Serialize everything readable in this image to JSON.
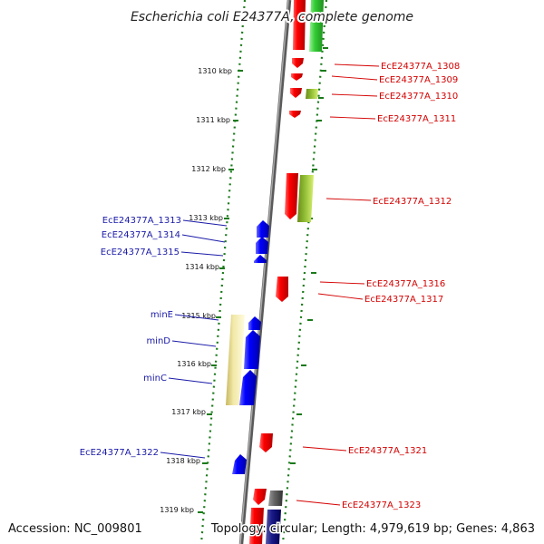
{
  "title": "Escherichia coli E24377A, complete genome",
  "footer": {
    "accession": "Accession: NC_009801",
    "topology": "Topology: circular; Length: 4,979,619 bp; Genes: 4,863"
  },
  "ticks": [
    "1310 kbp",
    "1311 kbp",
    "1312 kbp",
    "1313 kbp",
    "1314 kbp",
    "1315 kbp",
    "1316 kbp",
    "1317 kbp",
    "1318 kbp",
    "1319 kbp"
  ],
  "labels_right": [
    "EcE24377A_1308",
    "EcE24377A_1309",
    "EcE24377A_1310",
    "EcE24377A_1311",
    "EcE24377A_1312",
    "EcE24377A_1316",
    "EcE24377A_1317",
    "EcE24377A_1321",
    "EcE24377A_1323"
  ],
  "labels_left": [
    "EcE24377A_1313",
    "EcE24377A_1314",
    "EcE24377A_1315",
    "minE",
    "minD",
    "minC",
    "EcE24377A_1322"
  ],
  "colors": {
    "forward_gene": "#ee0000",
    "reverse_gene": "#0000ee",
    "rna_green": "#33cc33",
    "olive": "#8ab830",
    "pale_yellow": "#f0e6a0",
    "gray_gene": "#666666",
    "backbone": "#808080",
    "tick_green": "#1a7a1a"
  }
}
